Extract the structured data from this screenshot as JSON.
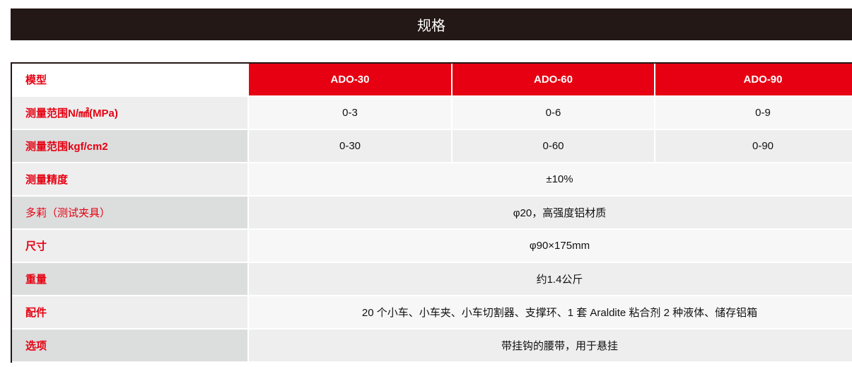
{
  "title": "规格",
  "columns": [
    "模型",
    "ADO-30",
    "ADO-60",
    "ADO-90"
  ],
  "rows": [
    {
      "label": "测量范围N/㎟(MPa)",
      "values": [
        "0-3",
        "0-6",
        "0-9"
      ]
    },
    {
      "label": "测量范围kgf/cm2",
      "values": [
        "0-30",
        "0-60",
        "0-90"
      ]
    },
    {
      "label": "测量精度",
      "value": "±10%"
    },
    {
      "label": "多莉（测试夹具）",
      "value": "φ20，高强度铝材质"
    },
    {
      "label": "尺寸",
      "value": "φ90×175mm"
    },
    {
      "label": "重量",
      "value": "约1.4公斤"
    },
    {
      "label": "配件",
      "value": "20 个小车、小车夹、小车切割器、支撑环、1 套 Araldite 粘合剂 2 种液体、储存铝箱"
    },
    {
      "label": "选项",
      "value": "带挂钩的腰带，用于悬挂"
    }
  ],
  "colors": {
    "title_bg": "#231815",
    "header_bg": "#e60012",
    "label_text": "#e60012"
  }
}
